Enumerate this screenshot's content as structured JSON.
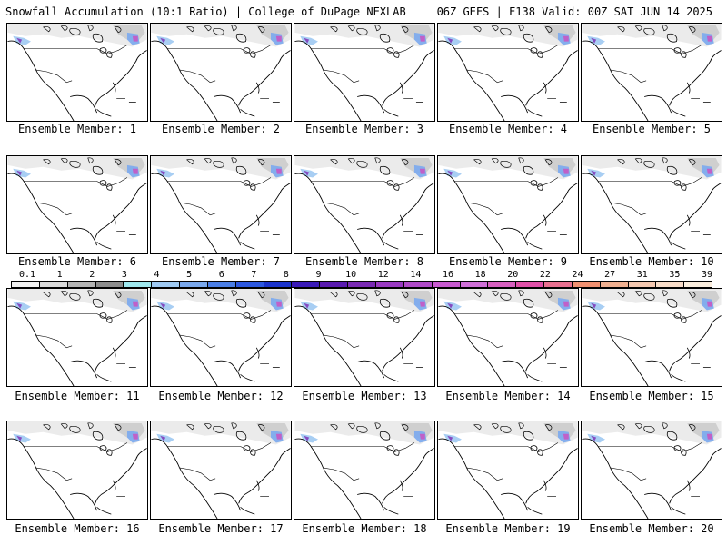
{
  "header": {
    "left": "Snowfall Accumulation (10:1 Ratio) | College of DuPage NEXLAB",
    "right": "06Z GEFS | F138 Valid: 00Z SAT JUN 14 2025"
  },
  "colorbar": {
    "labels": [
      "0.1",
      "1",
      "2",
      "3",
      "4",
      "5",
      "6",
      "7",
      "8",
      "9",
      "10",
      "12",
      "14",
      "16",
      "18",
      "20",
      "22",
      "24",
      "27",
      "31",
      "35",
      "39"
    ],
    "colors": [
      "#f2f2f2",
      "#d9d9d9",
      "#b3b3b3",
      "#8c8c8c",
      "#9ee8ee",
      "#9ec9f2",
      "#7aa9ee",
      "#4a7ee6",
      "#2c58e0",
      "#1a33cc",
      "#3a1ab8",
      "#5a1ab0",
      "#7a2ab4",
      "#9a3ac2",
      "#b04ac8",
      "#c85ad0",
      "#d070d8",
      "#d860c0",
      "#e050a8",
      "#e87090",
      "#f09070",
      "#f0b090",
      "#f4c8b0",
      "#f8dcc8",
      "#fbeede"
    ]
  },
  "panels": [
    {
      "caption": "Ensemble Member: 1"
    },
    {
      "caption": "Ensemble Member: 2"
    },
    {
      "caption": "Ensemble Member: 3"
    },
    {
      "caption": "Ensemble Member: 4"
    },
    {
      "caption": "Ensemble Member: 5"
    },
    {
      "caption": "Ensemble Member: 6"
    },
    {
      "caption": "Ensemble Member: 7"
    },
    {
      "caption": "Ensemble Member: 8"
    },
    {
      "caption": "Ensemble Member: 9"
    },
    {
      "caption": "Ensemble Member: 10"
    },
    {
      "caption": "Ensemble Member: 11"
    },
    {
      "caption": "Ensemble Member: 12"
    },
    {
      "caption": "Ensemble Member: 13"
    },
    {
      "caption": "Ensemble Member: 14"
    },
    {
      "caption": "Ensemble Member: 15"
    },
    {
      "caption": "Ensemble Member: 16"
    },
    {
      "caption": "Ensemble Member: 17"
    },
    {
      "caption": "Ensemble Member: 18"
    },
    {
      "caption": "Ensemble Member: 19"
    },
    {
      "caption": "Ensemble Member: 20"
    }
  ]
}
